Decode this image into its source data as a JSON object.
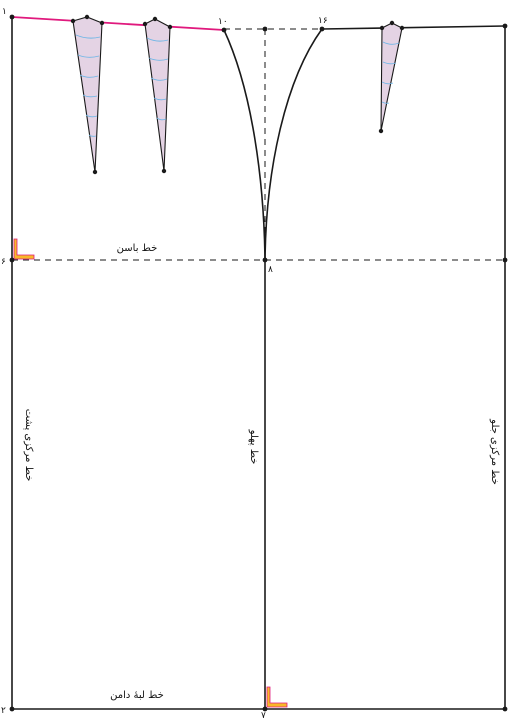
{
  "points": {
    "p1": "١",
    "p2": "٢",
    "p6": "۶",
    "p7": "٧",
    "p8": "٨",
    "p10": "١٠",
    "p16": "١۶"
  },
  "labels": {
    "hip_line": "خط باسن",
    "hem_line": "خط لبهٔ دامن",
    "side_line": "خط پهلو",
    "center_back": "خط مرکزی پشت",
    "center_front": "خط مرکزی جلو"
  },
  "colors": {
    "outline": "#1a1a1a",
    "waist_back": "#e0197d",
    "dart_fill": "#e4d3e4",
    "dart_stitch": "#6fb6e6",
    "corner_mark": "#f7b928"
  }
}
